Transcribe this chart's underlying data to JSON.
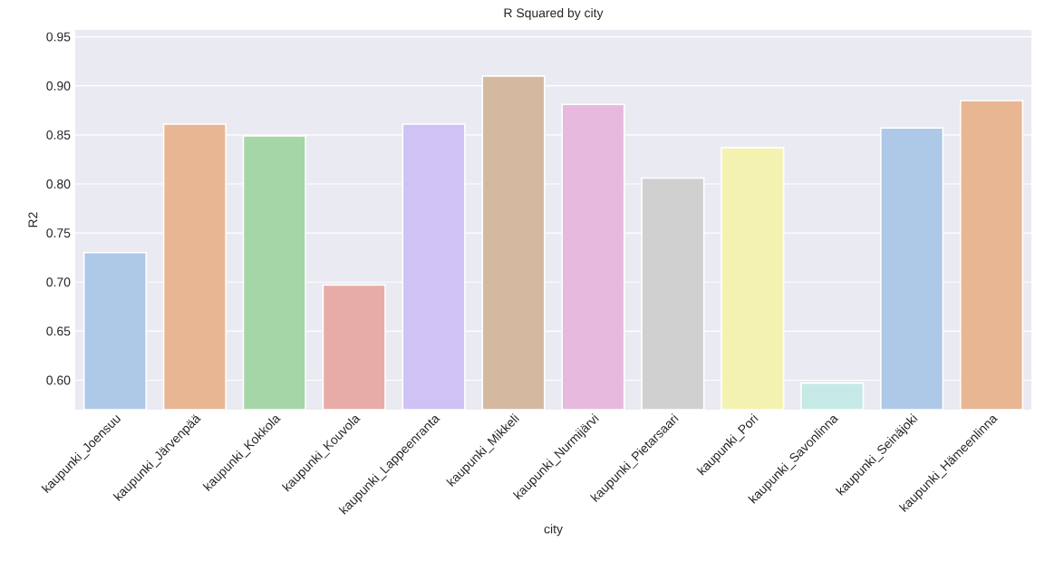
{
  "chart_data": {
    "type": "bar",
    "title": "R Squared by city",
    "xlabel": "city",
    "ylabel": "R2",
    "categories": [
      "kaupunki_Joensuu",
      "kaupunki_Järvenpää",
      "kaupunki_Kokkola",
      "kaupunki_Kouvola",
      "kaupunki_Lappeenranta",
      "kaupunki_Mikkeli",
      "kaupunki_Nurmijärvi",
      "kaupunki_Pietarsaari",
      "kaupunki_Pori",
      "kaupunki_Savonlinna",
      "kaupunki_Seinäjoki",
      "kaupunki_Hämeenlinna"
    ],
    "values": [
      0.73,
      0.861,
      0.849,
      0.697,
      0.861,
      0.91,
      0.881,
      0.806,
      0.837,
      0.597,
      0.857,
      0.885
    ],
    "colors": [
      "#aec8e8",
      "#e8b692",
      "#a5d6a7",
      "#e8aca7",
      "#cfc2f5",
      "#d4b9a0",
      "#e8b9df",
      "#d0d0d0",
      "#f3f2b1",
      "#c5e9e6",
      "#aec8e8",
      "#e8b692"
    ],
    "ylim": [
      0.57,
      0.957
    ],
    "yticks": [
      {
        "value": 0.6,
        "label": "0.60"
      },
      {
        "value": 0.65,
        "label": "0.65"
      },
      {
        "value": 0.7,
        "label": "0.70"
      },
      {
        "value": 0.75,
        "label": "0.75"
      },
      {
        "value": 0.8,
        "label": "0.80"
      },
      {
        "value": 0.85,
        "label": "0.85"
      },
      {
        "value": 0.9,
        "label": "0.90"
      },
      {
        "value": 0.95,
        "label": "0.95"
      }
    ],
    "grid": "y"
  }
}
